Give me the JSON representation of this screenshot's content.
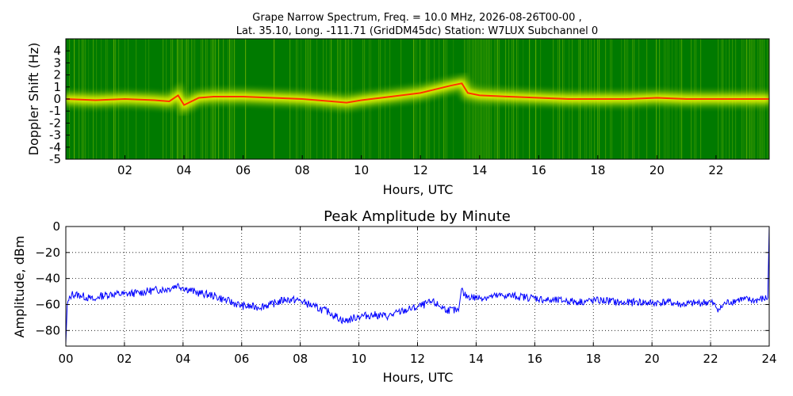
{
  "figure": {
    "title_line1": "Grape Narrow Spectrum, Freq. = 10.0 MHz, 2026-08-26T00-00 ,",
    "title_line2": "Lat.  35.10, Long. -111.71 (GridDM45dc) Station: W7LUX Subchannel 0"
  },
  "chart_data": [
    {
      "type": "heatmap",
      "title": "",
      "xlabel": "Hours, UTC",
      "ylabel": "Doppler Shift (Hz)",
      "xlim": [
        0,
        23.8
      ],
      "ylim": [
        -5,
        5
      ],
      "x_ticks": [
        2,
        4,
        6,
        8,
        10,
        12,
        14,
        16,
        18,
        20,
        22
      ],
      "x_tick_labels": [
        "02",
        "04",
        "06",
        "08",
        "10",
        "12",
        "14",
        "16",
        "18",
        "20",
        "22"
      ],
      "y_ticks": [
        4,
        3,
        2,
        1,
        0,
        -1,
        -2,
        -3,
        -4,
        -5
      ],
      "y_tick_labels": [
        "4",
        "3",
        "2",
        "1",
        "0",
        "-1",
        "-2",
        "-3",
        "-4",
        "-5"
      ],
      "colors": {
        "background": "#007a00",
        "mid": "#7fbf00",
        "high": "#ffff00",
        "peak": "#ff3300"
      },
      "carrier_trace": {
        "x": [
          0,
          1,
          2,
          3,
          3.5,
          3.8,
          4.0,
          4.5,
          5,
          6,
          7,
          8,
          9,
          9.5,
          10,
          11,
          12,
          12.5,
          13,
          13.4,
          13.6,
          14,
          15,
          16,
          17,
          18,
          19,
          20,
          21,
          22,
          23,
          23.8
        ],
        "y": [
          0,
          -0.1,
          0,
          -0.1,
          -0.2,
          0.3,
          -0.5,
          0.1,
          0.2,
          0.2,
          0.1,
          0,
          -0.2,
          -0.3,
          -0.1,
          0.2,
          0.5,
          0.8,
          1.1,
          1.3,
          0.5,
          0.3,
          0.2,
          0.1,
          0,
          0,
          0,
          0.1,
          0,
          0,
          0,
          0
        ]
      }
    },
    {
      "type": "line",
      "title": "Peak Amplitude by Minute",
      "xlabel": "Hours, UTC",
      "ylabel": "Amplitude, dBm",
      "xlim": [
        0,
        24
      ],
      "ylim": [
        -92,
        0
      ],
      "grid": true,
      "line_color": "#0000ff",
      "x_ticks": [
        0,
        2,
        4,
        6,
        8,
        10,
        12,
        14,
        16,
        18,
        20,
        22,
        24
      ],
      "x_tick_labels": [
        "00",
        "02",
        "04",
        "06",
        "08",
        "10",
        "12",
        "14",
        "16",
        "18",
        "20",
        "22",
        "24"
      ],
      "y_ticks": [
        0,
        -20,
        -40,
        -60,
        -80
      ],
      "y_tick_labels": [
        "0",
        "−20",
        "−40",
        "−60",
        "−80"
      ],
      "series": [
        {
          "x": [
            0,
            0.05,
            0.2,
            0.5,
            0.8,
            1.0,
            1.1,
            1.5,
            2.0,
            2.5,
            3.0,
            3.5,
            3.8,
            4.0,
            4.5,
            5.0,
            5.5,
            6.0,
            6.5,
            7.0,
            7.5,
            8.0,
            8.5,
            9.0,
            9.5,
            10.0,
            10.5,
            11.0,
            11.5,
            12.0,
            12.5,
            13.0,
            13.4,
            13.5,
            13.6,
            14.0,
            14.5,
            15.0,
            15.5,
            16.0,
            16.5,
            17.0,
            17.5,
            18.0,
            18.5,
            19.0,
            19.5,
            20.0,
            20.5,
            21.0,
            21.5,
            22.0,
            22.3,
            22.5,
            23.0,
            23.5,
            23.95,
            24.0
          ],
          "y": [
            -90,
            -60,
            -52,
            -53,
            -55,
            -57,
            -54,
            -52,
            -52,
            -51,
            -49,
            -48,
            -45,
            -47,
            -51,
            -53,
            -57,
            -61,
            -62,
            -60,
            -56,
            -57,
            -62,
            -66,
            -73,
            -69,
            -68,
            -69,
            -65,
            -62,
            -58,
            -64,
            -65,
            -48,
            -53,
            -55,
            -54,
            -53,
            -54,
            -55,
            -57,
            -57,
            -58,
            -57,
            -57,
            -59,
            -58,
            -59,
            -58,
            -60,
            -59,
            -58,
            -64,
            -59,
            -56,
            -57,
            -55,
            0
          ]
        }
      ]
    }
  ]
}
